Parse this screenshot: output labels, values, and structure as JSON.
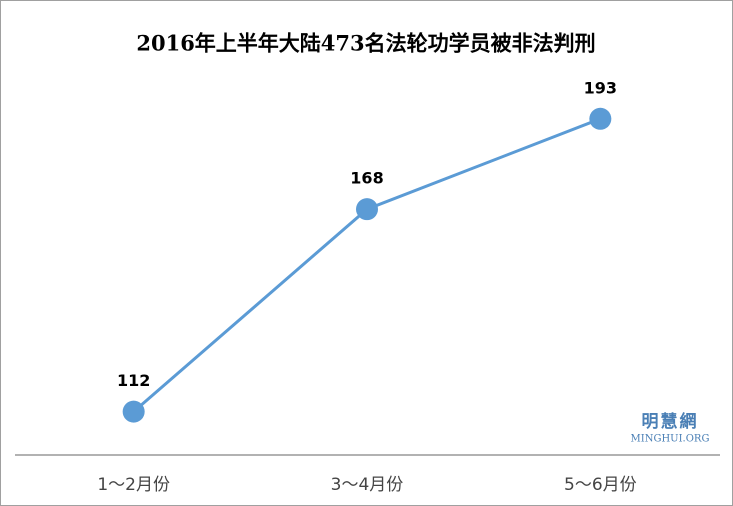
{
  "chart_data": {
    "type": "line",
    "title": "2016年上半年大陆473名法轮功学员被非法判刑",
    "categories": [
      "1～2月份",
      "3～4月份",
      "5～6月份"
    ],
    "values": [
      112,
      168,
      193
    ],
    "color": "#5b9bd5",
    "ylim": [
      100,
      200
    ],
    "watermark": "明慧網",
    "watermark_url": "MINGHUI.ORG"
  }
}
